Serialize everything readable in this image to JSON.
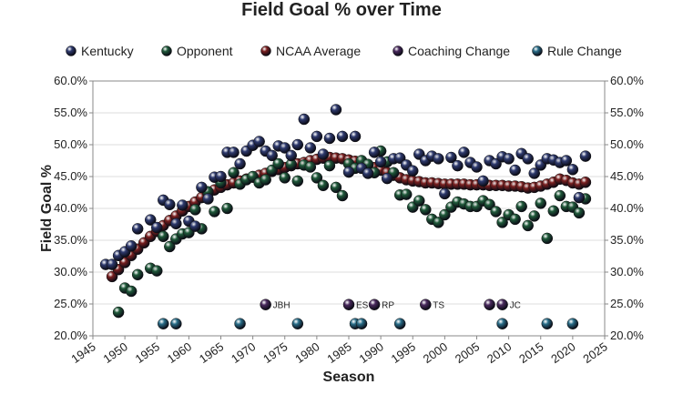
{
  "chart_data": {
    "type": "scatter",
    "title": "Field Goal % over Time",
    "xlabel": "Season",
    "ylabel": "Field Goal %",
    "xlim": [
      1945,
      2025
    ],
    "ylim": [
      20,
      60
    ],
    "x_ticks": [
      1945,
      1950,
      1955,
      1960,
      1965,
      1970,
      1975,
      1980,
      1985,
      1990,
      1995,
      2000,
      2005,
      2010,
      2015,
      2020,
      2025
    ],
    "y_ticks": [
      20,
      25,
      30,
      35,
      40,
      45,
      50,
      55,
      60
    ],
    "y_tick_labels": [
      "20.0%",
      "25.0%",
      "30.0%",
      "35.0%",
      "40.0%",
      "45.0%",
      "50.0%",
      "55.0%",
      "60.0%"
    ],
    "grid": "horizontal",
    "legend_position": "top",
    "colors": {
      "kentucky": "#2e3a6e",
      "opponent": "#1f5a3a",
      "ncaa": "#7a1f1f",
      "coaching": "#4a2a5e",
      "rule": "#2a6f8a"
    },
    "series": [
      {
        "name": "Kentucky",
        "color_key": "kentucky",
        "x": [
          1947,
          1948,
          1949,
          1950,
          1951,
          1952,
          1954,
          1955,
          1956,
          1957,
          1958,
          1959,
          1960,
          1961,
          1962,
          1963,
          1964,
          1965,
          1966,
          1967,
          1968,
          1969,
          1970,
          1971,
          1972,
          1973,
          1974,
          1975,
          1976,
          1977,
          1978,
          1979,
          1980,
          1981,
          1982,
          1983,
          1984,
          1985,
          1986,
          1987,
          1988,
          1989,
          1990,
          1991,
          1992,
          1993,
          1994,
          1995,
          1996,
          1997,
          1998,
          1999,
          2000,
          2001,
          2002,
          2003,
          2004,
          2005,
          2006,
          2007,
          2008,
          2009,
          2010,
          2011,
          2012,
          2013,
          2014,
          2015,
          2016,
          2017,
          2018,
          2019,
          2020,
          2021,
          2022
        ],
        "y": [
          31.2,
          31.2,
          32.6,
          33.2,
          34.1,
          36.8,
          38.2,
          37.0,
          41.3,
          40.6,
          37.6,
          40.5,
          38.0,
          37.2,
          43.3,
          41.5,
          44.9,
          45.0,
          48.8,
          48.8,
          47.0,
          49.0,
          49.9,
          50.5,
          49.0,
          48.3,
          49.8,
          49.5,
          48.3,
          50.0,
          54.0,
          49.5,
          51.3,
          48.5,
          51.0,
          55.5,
          51.3,
          45.7,
          51.3,
          46.3,
          45.5,
          48.8,
          47.3,
          44.7,
          47.8,
          47.9,
          46.8,
          45.9,
          48.5,
          47.5,
          48.2,
          47.8,
          42.3,
          48.0,
          46.7,
          48.8,
          47.2,
          46.5,
          44.3,
          47.5,
          47.0,
          48.1,
          47.8,
          46.0,
          48.6,
          47.8,
          45.5,
          46.8,
          47.8,
          47.6,
          47.2,
          47.5,
          46.1,
          41.7,
          48.2
        ]
      },
      {
        "name": "Opponent",
        "color_key": "opponent",
        "x": [
          1949,
          1950,
          1951,
          1952,
          1954,
          1955,
          1956,
          1957,
          1958,
          1959,
          1960,
          1961,
          1962,
          1963,
          1964,
          1965,
          1966,
          1967,
          1968,
          1969,
          1970,
          1971,
          1972,
          1973,
          1974,
          1975,
          1976,
          1977,
          1978,
          1979,
          1980,
          1981,
          1982,
          1983,
          1984,
          1985,
          1986,
          1987,
          1988,
          1989,
          1990,
          1991,
          1992,
          1993,
          1994,
          1995,
          1996,
          1997,
          1998,
          1999,
          2000,
          2001,
          2002,
          2003,
          2004,
          2005,
          2006,
          2007,
          2008,
          2009,
          2010,
          2011,
          2012,
          2013,
          2014,
          2015,
          2016,
          2017,
          2018,
          2019,
          2020,
          2021,
          2022
        ],
        "y": [
          23.7,
          27.5,
          27.0,
          29.6,
          30.6,
          30.2,
          35.6,
          34.0,
          35.2,
          36.0,
          36.2,
          39.8,
          36.8,
          42.6,
          39.5,
          44.0,
          40.0,
          45.6,
          43.8,
          44.5,
          45.0,
          44.0,
          44.5,
          46.0,
          47.0,
          44.8,
          46.9,
          44.3,
          46.8,
          46.5,
          44.8,
          43.6,
          46.7,
          43.3,
          42.0,
          47.0,
          46.3,
          47.5,
          46.9,
          45.6,
          49.0,
          47.3,
          45.6,
          42.1,
          42.2,
          40.2,
          41.2,
          39.8,
          38.3,
          37.8,
          39.0,
          40.2,
          41.0,
          40.7,
          40.3,
          40.3,
          41.2,
          40.6,
          39.5,
          37.8,
          39.0,
          38.3,
          40.3,
          37.3,
          38.8,
          40.8,
          35.3,
          39.6,
          42.0,
          40.3,
          40.2,
          39.3,
          41.5
        ]
      },
      {
        "name": "NCAA Average",
        "color_key": "ncaa",
        "x": [
          1948,
          1949,
          1950,
          1951,
          1952,
          1953,
          1954,
          1955,
          1956,
          1957,
          1958,
          1959,
          1960,
          1961,
          1962,
          1963,
          1964,
          1965,
          1966,
          1967,
          1968,
          1969,
          1970,
          1971,
          1972,
          1973,
          1974,
          1975,
          1976,
          1977,
          1978,
          1979,
          1980,
          1981,
          1982,
          1983,
          1984,
          1985,
          1986,
          1987,
          1988,
          1989,
          1990,
          1991,
          1992,
          1993,
          1994,
          1995,
          1996,
          1997,
          1998,
          1999,
          2000,
          2001,
          2002,
          2003,
          2004,
          2005,
          2006,
          2007,
          2008,
          2009,
          2010,
          2011,
          2012,
          2013,
          2014,
          2015,
          2016,
          2017,
          2018,
          2019,
          2020,
          2021,
          2022
        ],
        "y": [
          29.3,
          30.4,
          31.5,
          32.6,
          33.6,
          34.6,
          35.6,
          36.4,
          37.3,
          38.1,
          38.8,
          39.6,
          40.3,
          41.0,
          41.7,
          42.3,
          42.9,
          43.3,
          43.7,
          44.0,
          44.3,
          44.6,
          44.9,
          45.2,
          45.5,
          45.8,
          46.1,
          46.4,
          46.7,
          47.0,
          47.2,
          47.5,
          47.7,
          47.9,
          48.0,
          47.9,
          47.8,
          47.6,
          47.4,
          47.1,
          46.8,
          46.4,
          46.0,
          45.6,
          45.2,
          44.8,
          44.5,
          44.3,
          44.2,
          44.0,
          44.0,
          43.9,
          43.8,
          43.8,
          43.8,
          43.8,
          43.7,
          43.7,
          43.7,
          43.6,
          43.6,
          43.6,
          43.5,
          43.5,
          43.4,
          43.2,
          43.3,
          43.5,
          43.8,
          44.1,
          44.6,
          44.4,
          44.0,
          43.8,
          44.1
        ]
      }
    ],
    "annotations": {
      "coaching_changes": [
        {
          "x": 1972,
          "label": "JBH"
        },
        {
          "x": 1985,
          "label": "ES"
        },
        {
          "x": 1989,
          "label": "RP"
        },
        {
          "x": 1997,
          "label": "TS"
        },
        {
          "x": 2007,
          "label": ""
        },
        {
          "x": 2009,
          "label": "JC"
        }
      ],
      "coaching_y": 24.9,
      "rule_changes": [
        1956,
        1958,
        1968,
        1977,
        1986,
        1987,
        1993,
        2009,
        2016,
        2020
      ],
      "rule_y": 21.9
    },
    "legend": [
      {
        "label": "Kentucky",
        "color_key": "kentucky"
      },
      {
        "label": "Opponent",
        "color_key": "opponent"
      },
      {
        "label": "NCAA Average",
        "color_key": "ncaa"
      },
      {
        "label": "Coaching Change",
        "color_key": "coaching"
      },
      {
        "label": "Rule Change",
        "color_key": "rule"
      }
    ]
  }
}
